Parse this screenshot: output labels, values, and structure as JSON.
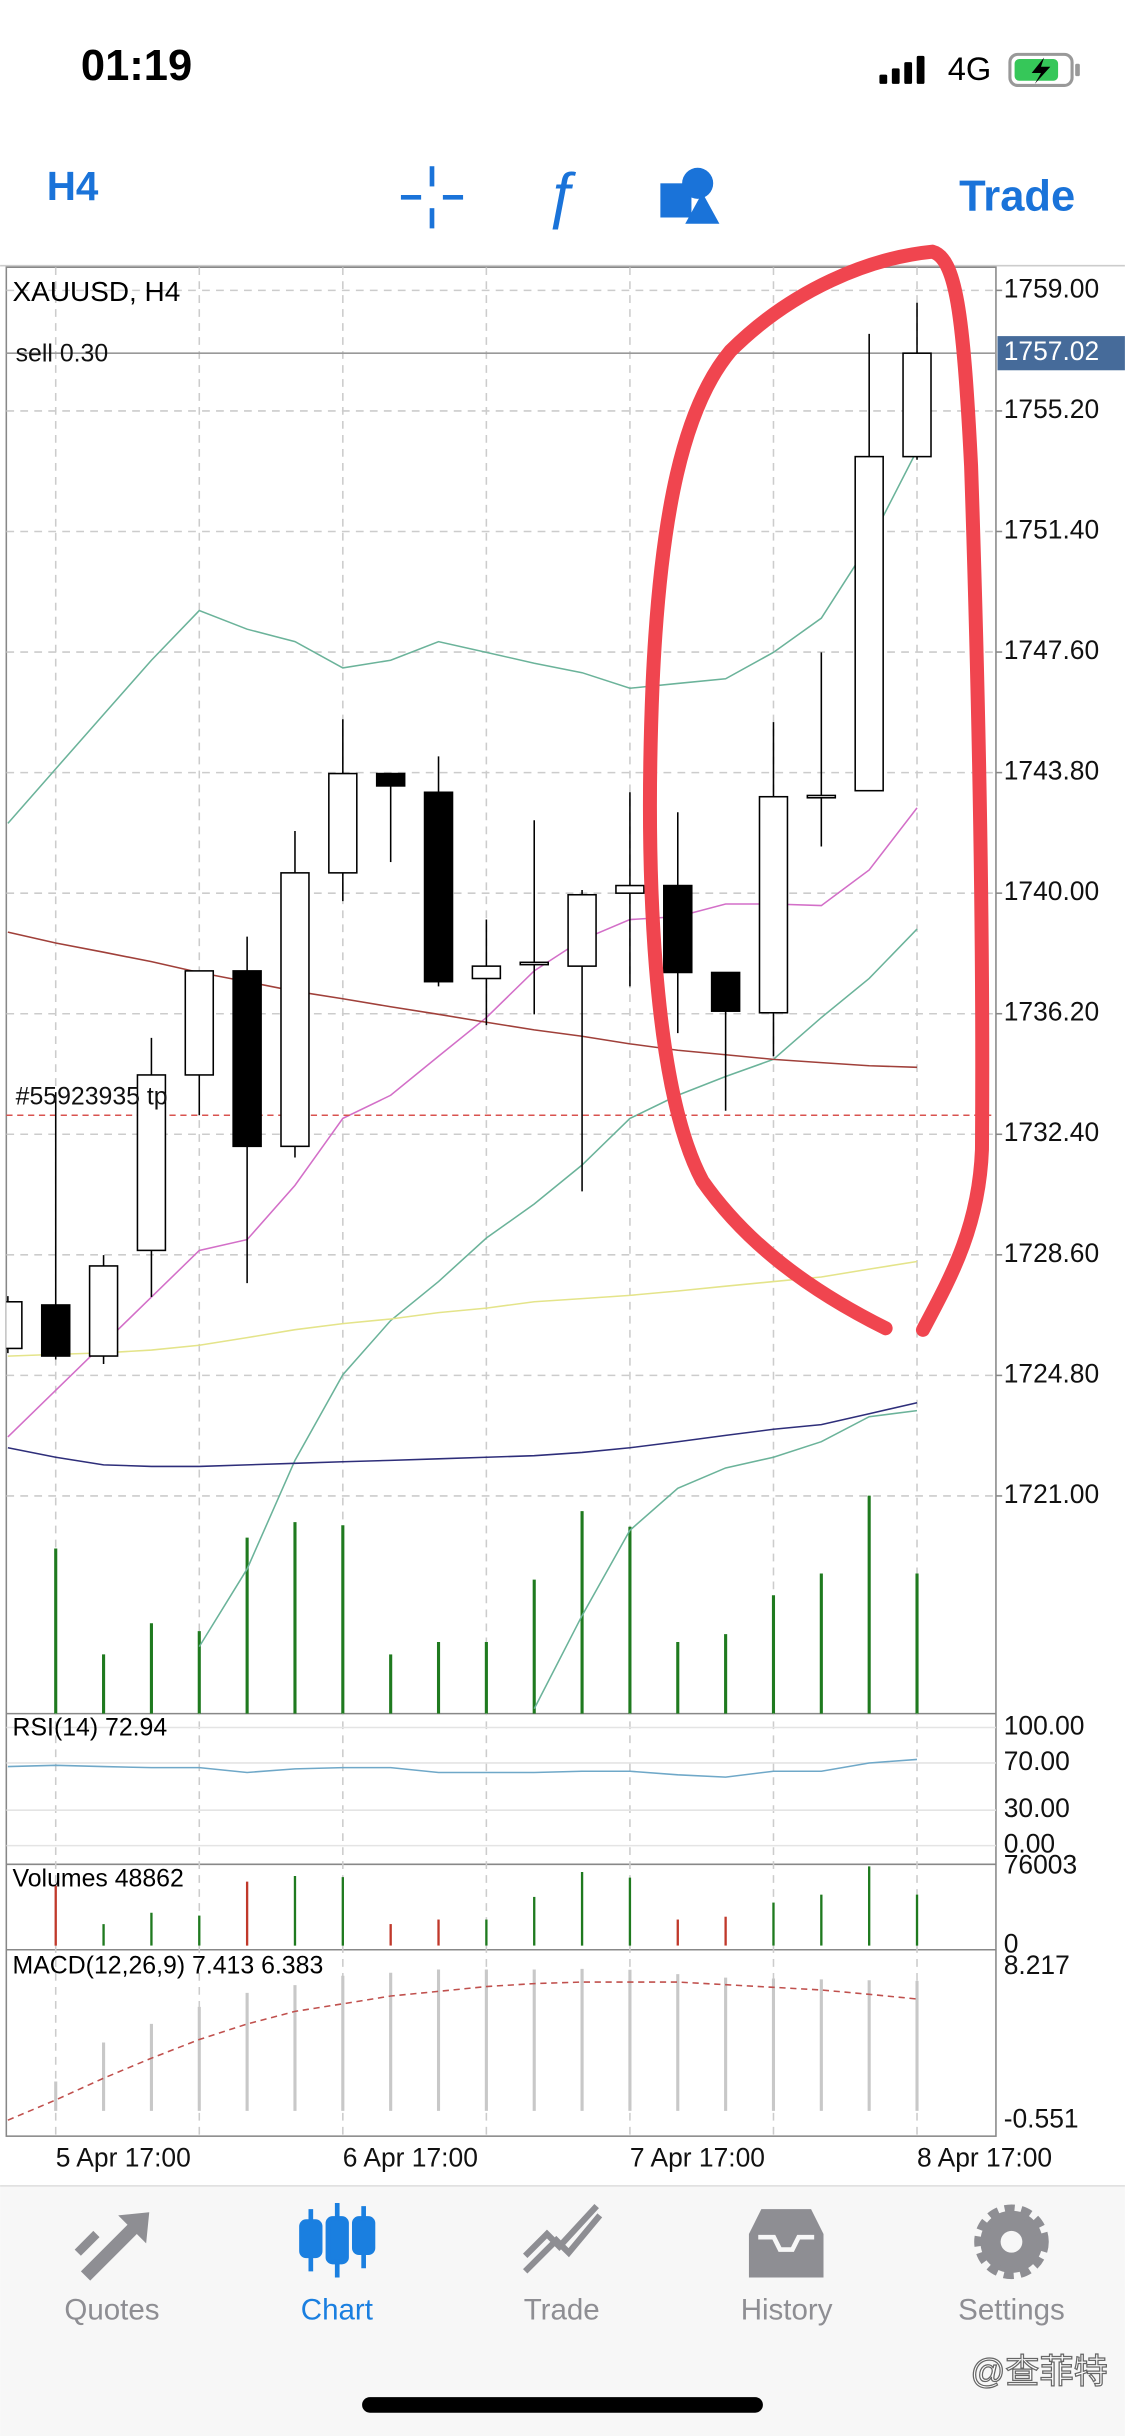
{
  "status_bar": {
    "time": "01:19",
    "network": "4G"
  },
  "toolbar": {
    "timeframe": "H4",
    "trade": "Trade"
  },
  "chart_data": {
    "type": "candlestick",
    "title": "XAUUSD, H4",
    "categories": [
      null,
      "5 Apr 17:00",
      null,
      null,
      null,
      null,
      null,
      "6 Apr 17:00",
      null,
      null,
      null,
      null,
      null,
      "7 Apr 17:00",
      null,
      null,
      null,
      null,
      null,
      "8 Apr 17:00"
    ],
    "open": [
      1725.65,
      1727.02,
      1725.41,
      1728.74,
      1734.27,
      1737.55,
      1732.02,
      1740.64,
      1743.77,
      1743.18,
      1737.31,
      1737.8,
      1737.7,
      1740.0,
      1740.24,
      1737.5,
      1736.23,
      1743.04,
      1743.23,
      1753.76
    ],
    "high": [
      1727.3,
      1733.73,
      1728.59,
      1735.44,
      1737.55,
      1738.63,
      1741.96,
      1745.48,
      1743.77,
      1744.31,
      1739.17,
      1742.3,
      1740.1,
      1743.18,
      1742.55,
      1737.5,
      1745.39,
      1747.59,
      1757.63,
      1758.61
    ],
    "low": [
      1725.5,
      1725.3,
      1725.16,
      1727.27,
      1733.0,
      1727.71,
      1731.67,
      1739.75,
      1740.98,
      1737.06,
      1735.84,
      1736.18,
      1730.6,
      1737.06,
      1735.59,
      1733.14,
      1734.86,
      1741.47,
      1743.23,
      1753.66
    ],
    "close": [
      1727.12,
      1725.41,
      1728.25,
      1734.27,
      1737.55,
      1732.02,
      1740.64,
      1743.77,
      1743.38,
      1737.21,
      1737.7,
      1737.82,
      1739.95,
      1740.24,
      1737.5,
      1736.28,
      1743.04,
      1743.08,
      1753.76,
      1757.02
    ],
    "ylim": [
      1714.14,
      1759.73
    ],
    "yticks": [
      {
        "value": 1759.0,
        "label": "1759.00"
      },
      {
        "value": 1755.2,
        "label": "1755.20"
      },
      {
        "value": 1751.4,
        "label": "1751.40"
      },
      {
        "value": 1747.6,
        "label": "1747.60"
      },
      {
        "value": 1743.8,
        "label": "1743.80"
      },
      {
        "value": 1740.0,
        "label": "1740.00"
      },
      {
        "value": 1736.2,
        "label": "1736.20"
      },
      {
        "value": 1732.4,
        "label": "1732.40"
      },
      {
        "value": 1728.6,
        "label": "1728.60"
      },
      {
        "value": 1724.8,
        "label": "1724.80"
      },
      {
        "value": 1721.0,
        "label": "1721.00"
      }
    ],
    "grid": true,
    "current_price": {
      "value": 1757.02,
      "label": "1757.02"
    },
    "order_label": "sell 0.30",
    "tp_label": "#55923935 tp",
    "tp_level": 1733.0,
    "overlays": [
      {
        "color": "#6bb39a",
        "values": [
          1742.2,
          1743.92,
          1745.63,
          1747.34,
          1748.91,
          1748.32,
          1747.93,
          1747.1,
          1747.34,
          1747.93,
          1747.59,
          1747.25,
          1746.95,
          1746.46,
          1746.61,
          1746.76,
          1747.59,
          1748.67,
          1751.02,
          1753.96
        ]
      },
      {
        "color": "#d36fc8",
        "values": [
          1722.86,
          1724.33,
          1725.8,
          1727.27,
          1728.74,
          1729.08,
          1730.79,
          1732.9,
          1733.63,
          1734.86,
          1736.08,
          1737.55,
          1738.53,
          1739.17,
          1739.26,
          1739.66,
          1739.66,
          1739.61,
          1740.73,
          1742.69
        ]
      },
      {
        "color": "#6bb39a",
        "values": [
          null,
          null,
          null,
          null,
          1716.25,
          1718.7,
          1722.12,
          1724.82,
          1726.53,
          1727.76,
          1729.13,
          1730.2,
          1731.43,
          1732.9,
          1733.63,
          1734.22,
          1734.76,
          1736.08,
          1737.31,
          1738.87
        ]
      },
      {
        "color": "#a0403a",
        "values": [
          1738.77,
          1738.43,
          1738.14,
          1737.84,
          1737.5,
          1737.21,
          1736.91,
          1736.67,
          1736.42,
          1736.18,
          1735.93,
          1735.69,
          1735.49,
          1735.25,
          1735.05,
          1734.91,
          1734.76,
          1734.66,
          1734.56,
          1734.51
        ]
      },
      {
        "color": "#e4e48a",
        "values": [
          1725.41,
          1725.46,
          1725.51,
          1725.6,
          1725.75,
          1725.99,
          1726.24,
          1726.43,
          1726.58,
          1726.78,
          1726.92,
          1727.12,
          1727.22,
          1727.32,
          1727.46,
          1727.61,
          1727.76,
          1727.9,
          1728.15,
          1728.39
        ]
      },
      {
        "color": "#2e2e7a",
        "values": [
          1722.52,
          1722.22,
          1721.98,
          1721.93,
          1721.93,
          1721.98,
          1722.03,
          1722.08,
          1722.12,
          1722.17,
          1722.22,
          1722.27,
          1722.37,
          1722.52,
          1722.71,
          1722.91,
          1723.1,
          1723.25,
          1723.59,
          1723.94
        ]
      },
      {
        "color": "#6bb39a",
        "values": [
          null,
          null,
          null,
          null,
          null,
          null,
          null,
          null,
          null,
          null,
          null,
          1714.29,
          1717.23,
          1719.92,
          1721.24,
          1721.88,
          1722.22,
          1722.71,
          1723.5,
          1723.69
        ]
      }
    ],
    "volume": {
      "color": "#1f7a1f",
      "down_color": "#c0392b",
      "values": [
        null,
        57545,
        20630,
        31487,
        28773,
        61345,
        66774,
        65688,
        20630,
        24972,
        24972,
        46688,
        70574,
        65145,
        24972,
        27687,
        41259,
        48859,
        76003,
        48862
      ]
    }
  },
  "indicators": {
    "rsi": {
      "label": "RSI(14) 72.94",
      "color": "#6fa8c8",
      "ylim": [
        -15.8,
        111.8
      ],
      "yticks": [
        {
          "value": 100,
          "label": "100.00"
        },
        {
          "value": 70,
          "label": "70.00"
        },
        {
          "value": 30,
          "label": "30.00"
        },
        {
          "value": 0,
          "label": "0.00"
        }
      ],
      "values": [
        67,
        68,
        67,
        66,
        66,
        62,
        65,
        66,
        66,
        62,
        62,
        62,
        63,
        63,
        60,
        58,
        63,
        63,
        70,
        72.94
      ]
    },
    "volumes": {
      "label": "Volumes 48862",
      "ylim": [
        -4000,
        78000
      ],
      "yticks": [
        76003,
        0
      ]
    },
    "macd": {
      "label": "MACD(12,26,9) 7.413 6.383",
      "ylim": [
        -1.44,
        9.19
      ],
      "yticks": [
        8.217,
        -0.551
      ],
      "hist_color": "#c8c8c8",
      "signal_color": "#c0504d",
      "histogram": [
        null,
        1.68,
        3.9,
        4.96,
        5.93,
        6.73,
        7.17,
        7.71,
        7.88,
        8.06,
        8.06,
        8.06,
        8.1,
        8.05,
        7.8,
        7.6,
        7.55,
        7.5,
        7.45,
        7.413
      ],
      "signal": [
        -0.53,
        0.62,
        1.86,
        3.01,
        4.07,
        4.96,
        5.67,
        6.11,
        6.55,
        6.82,
        7.09,
        7.26,
        7.35,
        7.35,
        7.35,
        7.2,
        7.05,
        6.9,
        6.65,
        6.383
      ]
    }
  },
  "tab_bar": {
    "tabs": [
      "Quotes",
      "Chart",
      "Trade",
      "History",
      "Settings"
    ],
    "active": 1
  },
  "watermark": "@查菲特"
}
